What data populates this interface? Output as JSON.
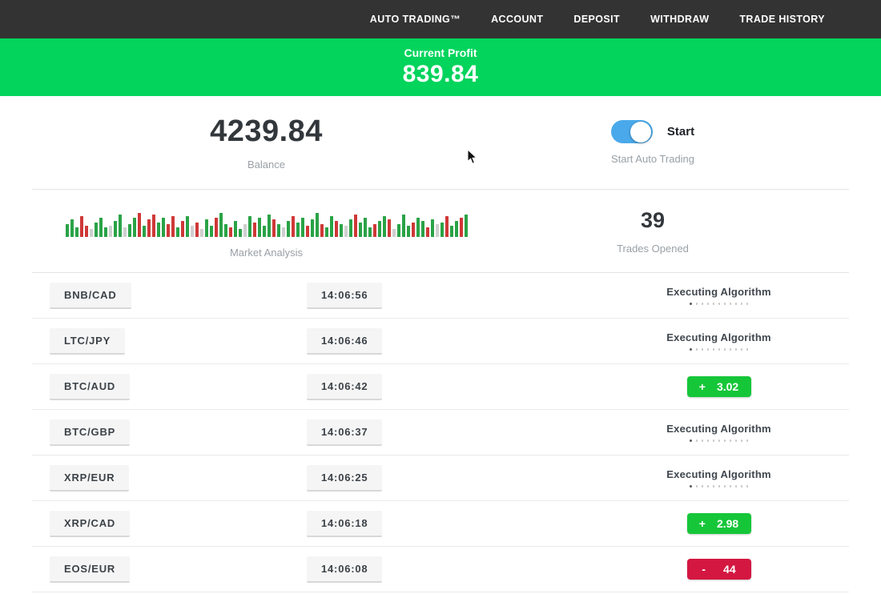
{
  "navbar": {
    "items": [
      "AUTO TRADING™",
      "ACCOUNT",
      "DEPOSIT",
      "WITHDRAW",
      "TRADE HISTORY"
    ]
  },
  "profit_banner": {
    "label": "Current Profit",
    "value": "839.84"
  },
  "stats": {
    "balance": {
      "value": "4239.84",
      "label": "Balance"
    },
    "auto_trading": {
      "toggle_label": "Start",
      "label": "Start Auto Trading",
      "enabled": true
    },
    "market_analysis": {
      "label": "Market Analysis",
      "bars": [
        "g16",
        "g22",
        "g12",
        "r26",
        "r14",
        "n10",
        "g18",
        "g24",
        "g12",
        "n14",
        "g20",
        "g28",
        "n12",
        "g16",
        "g24",
        "r30",
        "g14",
        "r22",
        "r28",
        "g18",
        "g24",
        "r16",
        "r26",
        "g12",
        "r20",
        "g26",
        "n14",
        "r18",
        "n10",
        "g22",
        "g14",
        "r24",
        "g30",
        "g16",
        "r12",
        "g20",
        "g10",
        "n16",
        "g26",
        "r18",
        "g24",
        "g14",
        "g28",
        "r22",
        "g16",
        "n12",
        "g20",
        "r26",
        "g18",
        "g24",
        "r14",
        "g22",
        "g30",
        "r16",
        "g12",
        "g26",
        "r20",
        "g16",
        "n14",
        "g22",
        "r28",
        "g18",
        "g24",
        "g12",
        "r16",
        "g20",
        "g26",
        "r22",
        "n10",
        "g16",
        "g28",
        "g14",
        "r18",
        "g24",
        "g20",
        "r12",
        "g22",
        "n16",
        "g18",
        "r26",
        "g14",
        "g20",
        "r24",
        "g28"
      ]
    },
    "trades_opened": {
      "value": "39",
      "label": "Trades Opened"
    }
  },
  "trades": [
    {
      "pair": "BNB/CAD",
      "time": "14:06:56",
      "status": "executing",
      "status_label": "Executing Algorithm"
    },
    {
      "pair": "LTC/JPY",
      "time": "14:06:46",
      "status": "executing",
      "status_label": "Executing Algorithm"
    },
    {
      "pair": "BTC/AUD",
      "time": "14:06:42",
      "status": "profit",
      "sign": "+",
      "amount": "3.02"
    },
    {
      "pair": "BTC/GBP",
      "time": "14:06:37",
      "status": "executing",
      "status_label": "Executing Algorithm"
    },
    {
      "pair": "XRP/EUR",
      "time": "14:06:25",
      "status": "executing",
      "status_label": "Executing Algorithm"
    },
    {
      "pair": "XRP/CAD",
      "time": "14:06:18",
      "status": "profit",
      "sign": "+",
      "amount": "2.98"
    },
    {
      "pair": "EOS/EUR",
      "time": "14:06:08",
      "status": "loss",
      "sign": "-",
      "amount": "44"
    }
  ],
  "progress_dots": {
    "count": 11,
    "active": 1
  },
  "colors": {
    "navbar_bg": "#333333",
    "banner_green": "#02d45c",
    "badge_green": "#16c639",
    "badge_red": "#d31741",
    "toggle_blue": "#4aa9ea",
    "bar_green": "#2aa347",
    "bar_red": "#cf3838",
    "bar_gray": "#cfcfcf"
  }
}
